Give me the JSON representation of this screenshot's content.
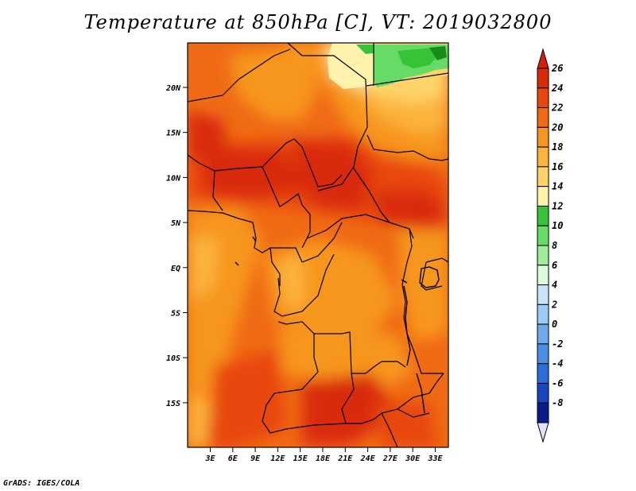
{
  "title": "Temperature at 850hPa [C], VT: 2019032800",
  "credit": "GrADS: IGES/COLA",
  "lat_ticks": [
    "20N",
    "15N",
    "10N",
    "5N",
    "EQ",
    "5S",
    "10S",
    "15S"
  ],
  "lon_ticks": [
    "3E",
    "6E",
    "9E",
    "12E",
    "15E",
    "18E",
    "21E",
    "24E",
    "27E",
    "30E",
    "33E"
  ],
  "colorbar": {
    "labels": [
      "26",
      "24",
      "22",
      "20",
      "18",
      "16",
      "14",
      "12",
      "10",
      "8",
      "6",
      "4",
      "2",
      "0",
      "-2",
      "-4",
      "-6",
      "-8"
    ],
    "colors": [
      "#d92a0a",
      "#e8470f",
      "#f06a15",
      "#f7961f",
      "#fbb43c",
      "#fed46a",
      "#fff2ac",
      "#37c337",
      "#66db66",
      "#a0eb9c",
      "#dcfadc",
      "#c8e4fb",
      "#9ccbf5",
      "#6ea9ec",
      "#4a8ee6",
      "#2a6ddb",
      "#1845c0",
      "#0a1c8c"
    ],
    "over_color": "#cf2208",
    "under_color": "#e2e2fa"
  }
}
